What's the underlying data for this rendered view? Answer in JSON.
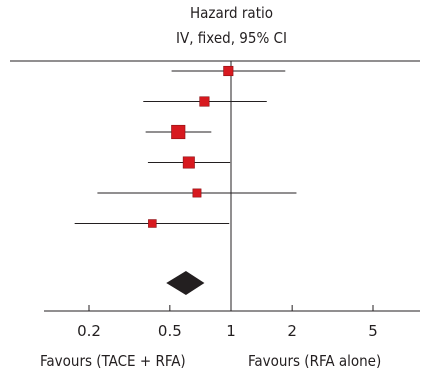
{
  "header": {
    "line1": "Hazard ratio",
    "line2": "IV, fixed, 95% CI"
  },
  "favours": {
    "left": "Favours (TACE + RFA)",
    "right": "Favours (RFA alone)"
  },
  "colors": {
    "point": "#d7191f",
    "summary": "#231f20",
    "line": "#231f20"
  },
  "chart_data": {
    "type": "forest",
    "scale": "log",
    "xlim": [
      0.1,
      10
    ],
    "reference": 1,
    "ticks": [
      {
        "value": 0.2,
        "label": "0.2"
      },
      {
        "value": 0.5,
        "label": "0.5"
      },
      {
        "value": 1,
        "label": "1"
      },
      {
        "value": 2,
        "label": "2"
      },
      {
        "value": 5,
        "label": "5"
      }
    ],
    "studies": [
      {
        "hr": 0.97,
        "lower": 0.51,
        "upper": 1.85,
        "weight": 1.0
      },
      {
        "hr": 0.74,
        "lower": 0.37,
        "upper": 1.5,
        "weight": 1.0
      },
      {
        "hr": 0.55,
        "lower": 0.38,
        "upper": 0.8,
        "weight": 3.0
      },
      {
        "hr": 0.62,
        "lower": 0.39,
        "upper": 0.99,
        "weight": 1.8
      },
      {
        "hr": 0.68,
        "lower": 0.22,
        "upper": 2.1,
        "weight": 0.6
      },
      {
        "hr": 0.41,
        "lower": 0.17,
        "upper": 0.98,
        "weight": 0.5
      }
    ],
    "summary": {
      "hr": 0.6,
      "lower": 0.48,
      "upper": 0.74
    }
  }
}
